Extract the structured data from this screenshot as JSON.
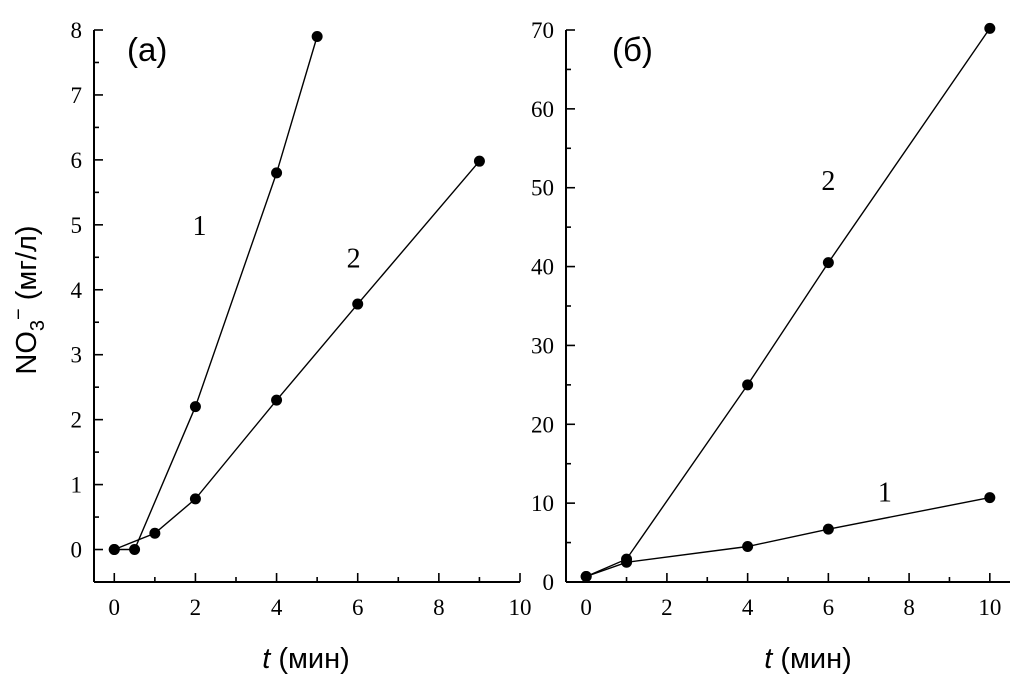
{
  "chart_data": [
    {
      "type": "line",
      "panel_label": "(а)",
      "xlabel_italic": "t",
      "xlabel_rest": " (мин)",
      "ylabel_main": "NO",
      "ylabel_sub": "3",
      "ylabel_sup": "−",
      "ylabel_rest": " (мг/л)",
      "xlim": [
        -0.5,
        10
      ],
      "ylim": [
        -0.5,
        8
      ],
      "xticks": [
        0,
        2,
        4,
        6,
        8,
        10
      ],
      "yticks": [
        0,
        1,
        2,
        3,
        4,
        5,
        6,
        7,
        8
      ],
      "series": [
        {
          "name": "1",
          "x": [
            0,
            0.5,
            2,
            4,
            5
          ],
          "y": [
            0,
            0,
            2.2,
            5.8,
            7.9
          ]
        },
        {
          "name": "2",
          "x": [
            0,
            1,
            2,
            4,
            6,
            9
          ],
          "y": [
            0,
            0.25,
            0.78,
            2.3,
            3.78,
            5.98
          ]
        }
      ],
      "curve_labels": [
        {
          "text": "1",
          "x": 2.1,
          "y": 5.0
        },
        {
          "text": "2",
          "x": 5.9,
          "y": 4.5
        }
      ]
    },
    {
      "type": "line",
      "panel_label": "(б)",
      "xlabel_italic": "t",
      "xlabel_rest": " (мин)",
      "xlim": [
        -0.5,
        10.5
      ],
      "ylim": [
        0,
        70
      ],
      "xticks": [
        0,
        2,
        4,
        6,
        8,
        10
      ],
      "yticks": [
        0,
        10,
        20,
        30,
        40,
        50,
        60,
        70
      ],
      "series": [
        {
          "name": "1",
          "x": [
            0,
            1,
            4,
            6,
            10
          ],
          "y": [
            0.7,
            2.5,
            4.5,
            6.7,
            10.7
          ]
        },
        {
          "name": "2",
          "x": [
            0,
            1,
            4,
            6,
            10
          ],
          "y": [
            0.7,
            2.9,
            25.0,
            40.5,
            70.2
          ]
        }
      ],
      "curve_labels": [
        {
          "text": "1",
          "x": 7.4,
          "y": 11.5
        },
        {
          "text": "2",
          "x": 6.0,
          "y": 51.0
        }
      ]
    }
  ]
}
